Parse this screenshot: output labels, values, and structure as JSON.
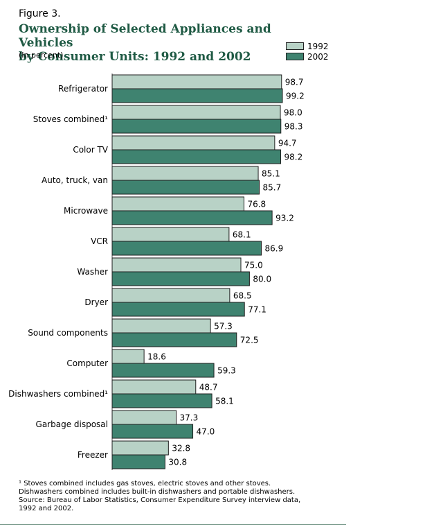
{
  "figure_label": "Figure 3.",
  "title_line1": "Ownership of Selected Appliances and Vehicles",
  "title_line2": "by Consumer Units: 1992 and 2002",
  "subtitle": "(In percent)",
  "footnote": {
    "line1": "¹ Stoves combined includes gas stoves, electric stoves and other stoves.",
    "line2": "Dishwashers combined includes built-in dishwashers and portable dishwashers.",
    "line3": "Source: Bureau of Labor Statistics, Consumer Expenditure Survey interview data,",
    "line4": "1992 and 2002."
  },
  "chart_data": {
    "type": "bar",
    "orientation": "horizontal",
    "categories": [
      "Refrigerator",
      "Stoves combined¹",
      "Color TV",
      "Auto, truck, van",
      "Microwave",
      "VCR",
      "Washer",
      "Dryer",
      "Sound components",
      "Computer",
      "Dishwashers combined¹",
      "Garbage disposal",
      "Freezer"
    ],
    "series": [
      {
        "name": "1992",
        "color": "#b8d2c6",
        "values": [
          98.7,
          98.0,
          94.7,
          85.1,
          76.8,
          68.1,
          75.0,
          68.5,
          57.3,
          18.6,
          48.7,
          37.3,
          32.8
        ],
        "labels": [
          "98.7",
          "98.0",
          "94.7",
          "85.1",
          "76.8",
          "68.1",
          "75.0",
          "68.5",
          "57.3",
          "18.6",
          "48.7",
          "37.3",
          "32.8"
        ]
      },
      {
        "name": "2002",
        "color": "#3f8370",
        "values": [
          99.2,
          98.3,
          98.2,
          85.7,
          93.2,
          86.9,
          80.0,
          77.1,
          72.5,
          59.3,
          58.1,
          47.0,
          30.8
        ],
        "labels": [
          "99.2",
          "98.3",
          "98.2",
          "85.7",
          "93.2",
          "86.9",
          "80.0",
          "77.1",
          "72.5",
          "59.3",
          "58.1",
          "47.0",
          "30.8"
        ]
      }
    ],
    "xlim": [
      0,
      100
    ],
    "legend_position": "top-right"
  }
}
